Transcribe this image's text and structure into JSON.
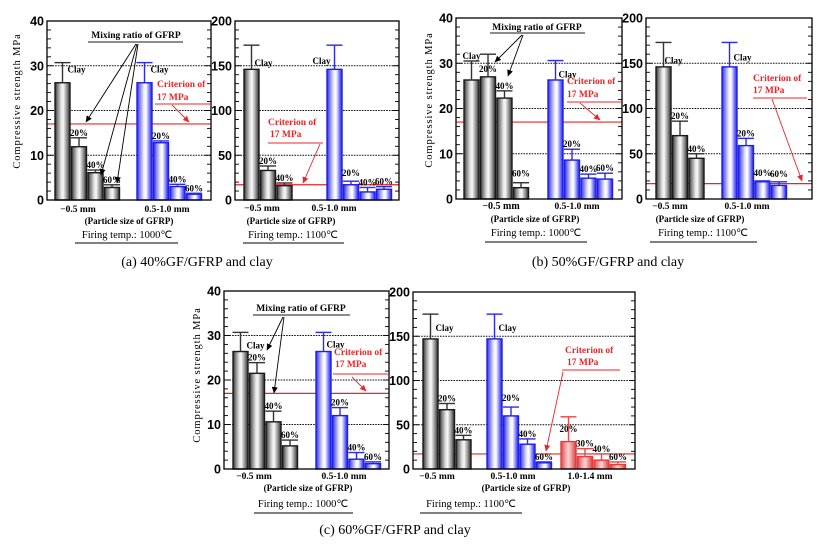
{
  "figure": {
    "captions": {
      "a": "(a) 40%GF/GFRP and clay",
      "b": "(b) 50%GF/GFRP and clay",
      "c": "(c) 60%GF/GFRP and clay"
    }
  },
  "chart_data": [
    {
      "type": "bar",
      "panel": "a",
      "title": "",
      "ylabel": "Compressive strength MPa",
      "ylim": [
        0,
        40
      ],
      "yticks": [
        "0",
        "10",
        "20",
        "30",
        "40"
      ],
      "grid": true,
      "categories": [
        "−0.5 mm",
        "0.5-1.0 mm"
      ],
      "xlabel": "(Particle size of GFRP)",
      "firing_temp": "Firing temp.: 1000℃",
      "annotation": "Mixing ratio of GFRP",
      "criterion": {
        "value": 17,
        "text": [
          "Criterion of",
          "17 MPa"
        ],
        "color": "#e8262a"
      },
      "groups": [
        {
          "category": "−0.5 mm",
          "color": "#1a1a1a",
          "bars": [
            {
              "label": "Clay",
              "value": 26.2,
              "error_upper": 30.7
            },
            {
              "label": "20%",
              "value": 11.9,
              "error_upper": 13.9
            },
            {
              "label": "40%",
              "value": 6.1,
              "error_upper": 6.7
            },
            {
              "label": "60%",
              "value": 2.8,
              "error_upper": 3.4
            }
          ]
        },
        {
          "category": "0.5-1.0 mm",
          "color": "#1e1ee6",
          "bars": [
            {
              "label": "Clay",
              "value": 26.2,
              "error_upper": 30.7
            },
            {
              "label": "20%",
              "value": 12.8,
              "error_upper": 13.2
            },
            {
              "label": "40%",
              "value": 3.0,
              "error_upper": 3.5
            },
            {
              "label": "60%",
              "value": 1.3,
              "error_upper": 1.5
            }
          ]
        }
      ]
    },
    {
      "type": "bar",
      "panel": "a",
      "title": "",
      "ylabel": "",
      "ylim": [
        0,
        200
      ],
      "yticks": [
        "0",
        "50",
        "100",
        "150",
        "200"
      ],
      "grid": true,
      "categories": [
        "−0.5 mm",
        "0.5-1.0 mm"
      ],
      "xlabel": "(Particle size of GFRP)",
      "firing_temp": "Firing temp.: 1100℃",
      "criterion": {
        "value": 17,
        "text": [
          "Criterion of",
          "17 MPa"
        ],
        "color": "#e8262a"
      },
      "groups": [
        {
          "category": "−0.5 mm",
          "color": "#1a1a1a",
          "bars": [
            {
              "label": "Clay",
              "value": 146,
              "error_upper": 173
            },
            {
              "label": "20%",
              "value": 33,
              "error_upper": 38
            },
            {
              "label": "40%",
              "value": 16,
              "error_upper": 19
            }
          ]
        },
        {
          "category": "0.5-1.0 mm",
          "color": "#1e1ee6",
          "bars": [
            {
              "label": "Clay",
              "value": 146,
              "error_upper": 173
            },
            {
              "label": "20%",
              "value": 17,
              "error_upper": 21
            },
            {
              "label": "40%",
              "value": 9,
              "error_upper": 14
            },
            {
              "label": "60%",
              "value": 12,
              "error_upper": 15
            }
          ]
        }
      ]
    },
    {
      "type": "bar",
      "panel": "b",
      "title": "",
      "ylabel": "Compressive strength MPa",
      "ylim": [
        0,
        40
      ],
      "yticks": [
        "0",
        "10",
        "20",
        "30",
        "40"
      ],
      "grid": true,
      "categories": [
        "−0.5 mm",
        "0.5-1.0 mm"
      ],
      "xlabel": "(Particle size of GFRP)",
      "firing_temp": "Firing temp.: 1000℃",
      "annotation": "Mixing ratio of GFRP",
      "criterion": {
        "value": 17,
        "text": [
          "Criterion of",
          "17 MPa"
        ],
        "color": "#e8262a"
      },
      "groups": [
        {
          "category": "−0.5 mm",
          "color": "#1a1a1a",
          "bars": [
            {
              "label": "Clay",
              "value": 26.3,
              "error_upper": 30.5
            },
            {
              "label": "20%",
              "value": 27.0,
              "error_upper": 32.0
            },
            {
              "label": "40%",
              "value": 22.3,
              "error_upper": 23.9
            },
            {
              "label": "60%",
              "value": 2.5,
              "error_upper": 3.6
            }
          ]
        },
        {
          "category": "0.5-1.0 mm",
          "color": "#1e1ee6",
          "bars": [
            {
              "label": "Clay",
              "value": 26.3,
              "error_upper": 30.6
            },
            {
              "label": "20%",
              "value": 8.6,
              "error_upper": 11.0
            },
            {
              "label": "40%",
              "value": 4.6,
              "error_upper": 5.5
            },
            {
              "label": "60%",
              "value": 4.4,
              "error_upper": 5.7
            }
          ]
        }
      ]
    },
    {
      "type": "bar",
      "panel": "b",
      "title": "",
      "ylabel": "",
      "ylim": [
        0,
        200
      ],
      "yticks": [
        "0",
        "50",
        "100",
        "150",
        "200"
      ],
      "grid": true,
      "categories": [
        "−0.5 mm",
        "0.5-1.0 mm"
      ],
      "xlabel": "(Particle size of GFRP)",
      "firing_temp": "Firing temp.: 1100℃",
      "criterion": {
        "value": 17,
        "text": [
          "Criterion of",
          "17 MPa"
        ],
        "color": "#e8262a"
      },
      "groups": [
        {
          "category": "−0.5 mm",
          "color": "#1a1a1a",
          "bars": [
            {
              "label": "Clay",
              "value": 146,
              "error_upper": 173
            },
            {
              "label": "20%",
              "value": 70,
              "error_upper": 86
            },
            {
              "label": "40%",
              "value": 45,
              "error_upper": 50
            }
          ]
        },
        {
          "category": "0.5-1.0 mm",
          "color": "#1e1ee6",
          "bars": [
            {
              "label": "Clay",
              "value": 146,
              "error_upper": 173
            },
            {
              "label": "20%",
              "value": 59,
              "error_upper": 67
            },
            {
              "label": "40%",
              "value": 19,
              "error_upper": 20
            },
            {
              "label": "60%",
              "value": 15,
              "error_upper": 19
            }
          ]
        }
      ]
    },
    {
      "type": "bar",
      "panel": "c",
      "title": "",
      "ylabel": "Compressive strength MPa",
      "ylim": [
        0,
        40
      ],
      "yticks": [
        "0",
        "10",
        "20",
        "30",
        "40"
      ],
      "grid": true,
      "categories": [
        "−0.5 mm",
        "0.5-1.0 mm"
      ],
      "xlabel": "(Particle size of GFRP)",
      "firing_temp": "Firing temp.: 1000℃",
      "annotation": "Mixing ratio of GFRP",
      "criterion": {
        "value": 17,
        "text": [
          "Criterion of",
          "17 MPa"
        ],
        "color": "#e8262a"
      },
      "groups": [
        {
          "category": "−0.5 mm",
          "color": "#1a1a1a",
          "bars": [
            {
              "label": "Clay",
              "value": 26.4,
              "error_upper": 30.7
            },
            {
              "label": "20%",
              "value": 21.5,
              "error_upper": 23.9
            },
            {
              "label": "40%",
              "value": 10.6,
              "error_upper": 13.0
            },
            {
              "label": "60%",
              "value": 5.2,
              "error_upper": 6.5
            }
          ]
        },
        {
          "category": "0.5-1.0 mm",
          "color": "#1e1ee6",
          "bars": [
            {
              "label": "Clay",
              "value": 26.4,
              "error_upper": 30.7
            },
            {
              "label": "20%",
              "value": 12.0,
              "error_upper": 13.8
            },
            {
              "label": "40%",
              "value": 2.2,
              "error_upper": 3.7
            },
            {
              "label": "60%",
              "value": 1.2,
              "error_upper": 1.6
            }
          ]
        }
      ]
    },
    {
      "type": "bar",
      "panel": "c",
      "title": "",
      "ylabel": "",
      "ylim": [
        0,
        200
      ],
      "yticks": [
        "0",
        "50",
        "100",
        "150",
        "200"
      ],
      "grid": true,
      "categories": [
        "−0.5 mm",
        "0.5-1.0 mm",
        "1.0-1.4 mm"
      ],
      "xlabel": "(Particle size of GFRP)",
      "firing_temp": "Firing temp.: 1100℃",
      "criterion": {
        "value": 17,
        "text": [
          "Criterion of",
          "17 MPa"
        ],
        "color": "#e8262a"
      },
      "groups": [
        {
          "category": "−0.5 mm",
          "color": "#1a1a1a",
          "bars": [
            {
              "label": "Clay",
              "value": 147,
              "error_upper": 175
            },
            {
              "label": "20%",
              "value": 67,
              "error_upper": 74
            },
            {
              "label": "40%",
              "value": 33,
              "error_upper": 38
            }
          ]
        },
        {
          "category": "0.5-1.0 mm",
          "color": "#1e1ee6",
          "bars": [
            {
              "label": "Clay",
              "value": 147,
              "error_upper": 175
            },
            {
              "label": "20%",
              "value": 60,
              "error_upper": 70
            },
            {
              "label": "40%",
              "value": 28,
              "error_upper": 34
            },
            {
              "label": "60%",
              "value": 7,
              "error_upper": 8
            }
          ]
        },
        {
          "category": "1.0-1.4 mm",
          "color": "#e23c3c",
          "bars": [
            {
              "label": "20%",
              "value": 31,
              "error_upper": 59
            },
            {
              "label": "30%",
              "value": 14,
              "error_upper": 23
            },
            {
              "label": "40%",
              "value": 10,
              "error_upper": 17
            },
            {
              "label": "60%",
              "value": 5,
              "error_upper": 8
            }
          ]
        }
      ]
    }
  ]
}
